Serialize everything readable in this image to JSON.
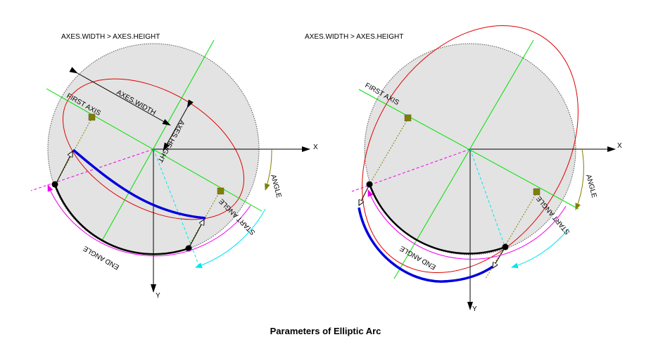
{
  "caption": "Parameters of Elliptic Arc",
  "colors": {
    "circle_fill": "#e3e3e3",
    "ellipse": "#e00000",
    "axis_green": "#00e000",
    "arc_blue": "#0000dd",
    "angle_olive": "#808000",
    "start_angle_cyan": "#00e5ee",
    "end_angle_magenta": "#ee00ee",
    "black": "#000000"
  },
  "left": {
    "heading": "AXES.WIDTH > AXES.HEIGHT",
    "axis_x": "X",
    "axis_y": "Y",
    "first_axis": "FIRST AXIS",
    "axes_width": "AXES.WIDTH",
    "axes_height": "AXES.HEIGHT",
    "angle": "ANGLE",
    "start_angle": "START ANGLE",
    "end_angle": "END ANGLE"
  },
  "right": {
    "heading": "AXES.WIDTH > AXES.HEIGHT",
    "axis_x": "X",
    "axis_y": "Y",
    "first_axis": "FIRST AXIS",
    "angle": "ANGLE",
    "start_angle": "START ANGLE",
    "end_angle": "END ANGLE"
  }
}
